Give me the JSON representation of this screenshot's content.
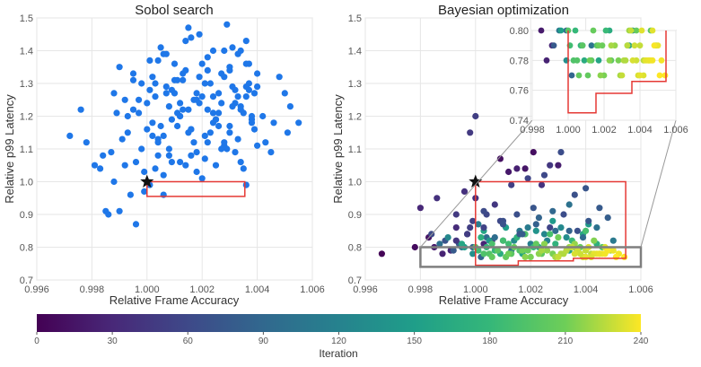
{
  "chart_data": [
    {
      "type": "scatter",
      "title": "Sobol search",
      "xlabel": "Relative Frame Accuracy",
      "ylabel": "Relative p99 Latency",
      "xlim": [
        0.996,
        1.006
      ],
      "ylim": [
        0.7,
        1.5
      ],
      "xticks": [
        "0.996",
        "0.998",
        "1.000",
        "1.002",
        "1.004",
        "1.006"
      ],
      "yticks": [
        "0.7",
        "0.8",
        "0.9",
        "1.0",
        "1.1",
        "1.2",
        "1.3",
        "1.4",
        "1.5"
      ],
      "point_color": "#1f77e8",
      "reference_point": {
        "x": 1.0,
        "y": 1.0,
        "marker": "star"
      },
      "feasible_box": {
        "x": [
          1.0,
          1.00355
        ],
        "y": [
          0.955,
          1.0
        ],
        "color": "#e53935"
      },
      "x": [
        0.9972,
        0.9976,
        0.9978,
        0.9981,
        0.9983,
        0.9985,
        0.9986,
        0.9987,
        0.9988,
        0.9989,
        0.999,
        0.9991,
        0.9992,
        0.9993,
        0.9994,
        0.9995,
        0.9996,
        0.9997,
        0.9998,
        0.9999,
        1.0001,
        1.0002,
        1.0003,
        1.0004,
        1.0005,
        1.0006,
        1.0007,
        1.0008,
        1.0009,
        1.001,
        1.0011,
        1.0012,
        1.0013,
        1.0014,
        1.0015,
        1.0016,
        1.0017,
        1.0018,
        1.0019,
        1.002,
        1.0021,
        1.0022,
        1.0023,
        1.0024,
        1.0025,
        1.0026,
        1.0027,
        1.0028,
        1.0029,
        1.003,
        1.0031,
        1.0032,
        1.0033,
        1.0034,
        1.0035,
        1.0036,
        1.0037,
        1.0038,
        1.0039,
        1.004,
        1.0042,
        1.0045,
        1.0048,
        1.005,
        1.0052,
        1.0055,
        0.9993,
        0.9995,
        0.9997,
        0.9999,
        1.0002,
        1.0004,
        1.0006,
        1.0008,
        1.001,
        1.0012,
        1.0014,
        1.0016,
        1.0018,
        1.002,
        1.0022,
        1.0024,
        1.0026,
        1.0028,
        1.003,
        1.0032,
        1.0034,
        1.0036,
        1.0038,
        1.004,
        1.0001,
        1.0003,
        1.0005,
        1.0007,
        1.0009,
        1.0011,
        1.0013,
        1.0015,
        1.0017,
        1.0019,
        1.0021,
        1.0023,
        1.0025,
        1.0027,
        1.0029,
        1.0031,
        1.0033,
        1.0035,
        1.0037,
        1.0039,
        0.9996,
        0.9998,
        1.0,
        1.0002,
        1.0004,
        1.0006,
        1.0008,
        1.001,
        1.0012,
        1.0014,
        1.0016,
        1.0018,
        1.002,
        1.0022,
        1.0024,
        1.0026,
        1.0028,
        1.003,
        1.0032,
        1.0034,
        1.0036,
        1.0038,
        1.0003,
        1.0006,
        1.0009,
        1.0012,
        1.0015,
        1.0018,
        1.0021,
        1.0024,
        1.0027,
        1.003,
        1.0033,
        1.0036,
        0.9988,
        0.9992,
        1.0,
        1.0004,
        1.0011,
        1.0019,
        1.0025,
        1.0031,
        1.0036,
        1.004,
        0.9984,
        0.999,
        0.9995,
        1.0001,
        1.0007,
        1.0013,
        1.0016,
        1.0022,
        1.0028,
        1.0034,
        1.0037,
        1.0043,
        1.0046,
        1.0051
      ],
      "y": [
        1.14,
        1.22,
        1.12,
        1.05,
        1.04,
        0.91,
        0.9,
        1.09,
        1.27,
        1.21,
        0.91,
        1.13,
        1.25,
        1.2,
        0.96,
        1.31,
        0.87,
        1.21,
        1.3,
        0.97,
        0.99,
        1.18,
        1.3,
        1.08,
        1.41,
        0.96,
        1.27,
        1.1,
        1.19,
        1.36,
        1.31,
        1.24,
        1.22,
        1.05,
        1.47,
        1.08,
        1.12,
        1.27,
        1.32,
        1.01,
        1.07,
        1.38,
        1.15,
        1.26,
        1.05,
        1.21,
        1.33,
        1.11,
        1.48,
        1.17,
        1.29,
        1.09,
        1.39,
        1.23,
        1.04,
        0.99,
        1.36,
        1.18,
        1.27,
        1.11,
        1.2,
        1.09,
        1.32,
        1.27,
        1.23,
        1.18,
        1.15,
        1.33,
        1.25,
        1.03,
        1.14,
        1.37,
        1.02,
        1.23,
        1.31,
        1.2,
        1.43,
        1.16,
        1.09,
        1.26,
        1.22,
        1.4,
        1.17,
        1.12,
        1.34,
        1.28,
        1.06,
        1.43,
        1.2,
        1.29,
        1.37,
        1.26,
        1.17,
        1.29,
        1.06,
        1.21,
        1.33,
        1.15,
        1.25,
        1.45,
        1.14,
        1.3,
        1.19,
        1.24,
        1.1,
        1.41,
        1.26,
        1.21,
        1.3,
        1.16,
        1.06,
        1.1,
        1.24,
        1.32,
        1.13,
        1.39,
        1.08,
        1.27,
        1.2,
        1.34,
        1.16,
        1.25,
        1.36,
        1.12,
        1.21,
        1.27,
        1.32,
        1.15,
        1.24,
        1.22,
        1.36,
        1.19,
        1.04,
        1.14,
        1.28,
        1.06,
        1.22,
        1.03,
        1.3,
        1.18,
        1.1,
        1.35,
        1.13,
        1.26,
        1.0,
        1.05,
        1.16,
        1.12,
        1.17,
        1.24,
        1.19,
        1.23,
        1.29,
        1.33,
        1.08,
        1.35,
        1.22,
        1.28,
        1.39,
        1.31,
        1.44,
        1.34,
        1.4,
        1.4,
        1.28,
        1.12,
        1.18,
        1.15
      ]
    },
    {
      "type": "scatter",
      "title": "Bayesian optimization",
      "xlabel": "Relative Frame Accuracy",
      "ylabel": "Relative p99 Latency",
      "xlim": [
        0.996,
        1.006
      ],
      "ylim": [
        0.7,
        1.5
      ],
      "xticks": [
        "0.996",
        "0.998",
        "1.000",
        "1.002",
        "1.004",
        "1.006"
      ],
      "yticks": [
        "0.7",
        "0.8",
        "0.9",
        "1.0",
        "1.1",
        "1.2",
        "1.3",
        "1.4",
        "1.5"
      ],
      "color_by": "iteration",
      "reference_point": {
        "x": 1.0,
        "y": 1.0,
        "marker": "star"
      },
      "pareto_boundary": {
        "x": [
          1.0,
          1.0,
          1.00155,
          1.00155,
          1.00355,
          1.00355,
          1.00545,
          1.00545
        ],
        "y": [
          1.0,
          0.745,
          0.745,
          0.758,
          0.758,
          0.766,
          0.766,
          1.0
        ],
        "color": "#e53935"
      },
      "zoom_region": {
        "x": [
          0.998,
          1.006
        ],
        "y": [
          0.74,
          0.8
        ],
        "color": "#7f7f7f"
      },
      "inset": {
        "xlim": [
          0.998,
          1.006
        ],
        "ylim": [
          0.74,
          0.8
        ],
        "xticks": [
          "0.998",
          "1.000",
          "1.002",
          "1.004",
          "1.006"
        ],
        "yticks": [
          "0.74",
          "0.76",
          "0.78",
          "0.80"
        ]
      },
      "x": [
        0.9966,
        0.9978,
        0.9983,
        0.9985,
        0.9988,
        0.9991,
        0.9993,
        0.9996,
        0.9998,
        1.0,
        1.0003,
        1.0006,
        1.0009,
        1.0012,
        1.0015,
        1.0018,
        1.0021,
        1.0024,
        1.0027,
        1.003,
        0.9984,
        0.9989,
        0.9994,
        0.9999,
        1.0004,
        1.001,
        1.0016,
        1.002,
        1.0025,
        1.0033,
        0.9992,
        0.9997,
        1.0002,
        1.0007,
        1.0013,
        1.0019,
        1.0026,
        1.0031,
        1.0036,
        1.0041,
        0.9987,
        0.9995,
        1.0001,
        1.0008,
        1.0014,
        1.0022,
        1.0028,
        1.0034,
        1.0039,
        1.0044,
        0.999,
        0.9999,
        1.0005,
        1.0011,
        1.0017,
        1.0023,
        1.0029,
        1.0035,
        1.004,
        1.0046,
        0.9996,
        1.0003,
        1.0009,
        1.0015,
        1.0021,
        1.0027,
        1.0033,
        1.0038,
        1.0043,
        1.0049,
        1.0002,
        1.0007,
        1.0012,
        1.0018,
        1.0024,
        1.003,
        1.0036,
        1.0042,
        1.0047,
        1.0052,
        1.0004,
        1.001,
        1.0016,
        1.0022,
        1.0028,
        1.0034,
        1.004,
        1.0045,
        1.005,
        1.0054,
        1.0001,
        1.0006,
        1.0013,
        1.0019,
        1.0025,
        1.0031,
        1.0037,
        1.0041,
        1.0044,
        1.0048,
        1.0003,
        1.0008,
        1.0014,
        1.002,
        1.0026,
        1.0032,
        1.0035,
        1.0039,
        1.0043,
        1.0046,
        0.9995,
        1.0005,
        1.0011,
        1.0017,
        1.0023,
        1.0029,
        1.0033,
        1.0038,
        1.0042,
        1.0045,
        1.0,
        1.0006,
        1.0012,
        1.0018,
        1.0024,
        1.003,
        1.0036,
        1.004,
        1.0047,
        1.0051,
        0.9993,
        0.9997,
        1.0003,
        1.0009,
        1.0015,
        1.0021,
        1.0027,
        1.0032,
        1.0037,
        1.0041,
        0.9998,
        1.0004,
        1.001,
        1.0016,
        1.0022,
        1.0028,
        1.0034,
        1.0039,
        1.0044,
        1.005,
        1.0,
        1.0007,
        1.0013,
        1.0019,
        1.0025,
        1.0031,
        1.0036,
        1.004,
        1.0045,
        1.0048,
        0.998,
        0.9986,
        0.9993,
        0.9999,
        1.0003,
        1.001,
        1.0017,
        1.0023,
        1.0029,
        1.0034
      ],
      "y": [
        0.78,
        0.8,
        0.83,
        0.8,
        0.78,
        0.79,
        0.86,
        0.97,
        1.15,
        1.2,
        0.81,
        0.82,
        1.07,
        1.03,
        1.04,
        1.04,
        1.09,
        0.99,
        1.05,
        1.05,
        0.84,
        0.82,
        0.81,
        0.8,
        0.83,
        0.82,
        0.85,
        0.81,
        0.84,
        0.83,
        0.79,
        0.84,
        0.77,
        0.83,
        0.79,
        0.86,
        0.82,
        0.86,
        0.8,
        0.87,
        0.81,
        0.8,
        0.87,
        0.79,
        0.82,
        0.85,
        0.88,
        0.79,
        0.84,
        0.81,
        0.83,
        0.78,
        0.82,
        0.86,
        0.78,
        0.8,
        0.81,
        0.82,
        0.85,
        0.8,
        0.8,
        0.85,
        0.78,
        0.83,
        0.8,
        0.84,
        0.79,
        0.8,
        0.82,
        0.79,
        0.83,
        0.79,
        0.81,
        0.84,
        0.78,
        0.83,
        0.81,
        0.78,
        0.8,
        0.78,
        0.8,
        0.82,
        0.79,
        0.81,
        0.78,
        0.8,
        0.79,
        0.78,
        0.79,
        0.77,
        0.79,
        0.81,
        0.78,
        0.79,
        0.81,
        0.78,
        0.79,
        0.8,
        0.78,
        0.79,
        0.78,
        0.79,
        0.8,
        0.77,
        0.79,
        0.78,
        0.8,
        0.77,
        0.78,
        0.78,
        0.81,
        0.78,
        0.77,
        0.79,
        0.78,
        0.77,
        0.79,
        0.78,
        0.77,
        0.78,
        0.8,
        0.77,
        0.78,
        0.77,
        0.79,
        0.77,
        0.78,
        0.77,
        0.78,
        0.77,
        0.82,
        0.84,
        0.86,
        0.88,
        0.9,
        0.92,
        0.86,
        0.9,
        0.85,
        0.88,
        0.86,
        0.9,
        0.88,
        0.84,
        0.87,
        0.91,
        0.85,
        0.83,
        0.86,
        0.82,
        0.95,
        0.93,
        0.99,
        1.01,
        1.02,
        1.09,
        0.96,
        0.98,
        0.92,
        0.89,
        0.92,
        0.95,
        0.9,
        0.88,
        0.91,
        0.87,
        0.84,
        0.89,
        0.85,
        0.93
      ],
      "iteration": [
        2,
        8,
        14,
        20,
        26,
        30,
        34,
        38,
        46,
        50,
        28,
        32,
        12,
        18,
        24,
        16,
        10,
        40,
        44,
        22,
        62,
        70,
        78,
        84,
        92,
        100,
        108,
        116,
        124,
        132,
        76,
        82,
        88,
        96,
        104,
        112,
        120,
        128,
        136,
        144,
        98,
        106,
        114,
        122,
        130,
        138,
        146,
        154,
        162,
        170,
        126,
        134,
        142,
        150,
        158,
        166,
        174,
        182,
        190,
        198,
        150,
        158,
        166,
        174,
        182,
        190,
        198,
        206,
        214,
        222,
        170,
        178,
        186,
        194,
        202,
        210,
        218,
        226,
        234,
        238,
        180,
        188,
        196,
        204,
        212,
        220,
        228,
        232,
        236,
        240,
        186,
        192,
        200,
        208,
        216,
        224,
        230,
        234,
        237,
        239,
        194,
        200,
        206,
        212,
        218,
        224,
        228,
        232,
        235,
        238,
        160,
        196,
        204,
        210,
        216,
        222,
        226,
        230,
        233,
        236,
        198,
        204,
        210,
        216,
        222,
        228,
        232,
        235,
        238,
        240,
        42,
        48,
        54,
        60,
        66,
        72,
        56,
        64,
        68,
        74,
        50,
        58,
        66,
        74,
        82,
        90,
        86,
        94,
        102,
        110,
        36,
        44,
        52,
        56,
        60,
        64,
        68,
        72,
        76,
        80,
        30,
        38,
        46,
        54,
        62,
        70,
        78,
        86,
        94,
        102
      ],
      "colorbar": {
        "label": "Iteration",
        "range": [
          0,
          240
        ],
        "ticks": [
          "0",
          "30",
          "60",
          "90",
          "120",
          "150",
          "180",
          "210",
          "240"
        ],
        "colormap": "viridis"
      }
    }
  ]
}
